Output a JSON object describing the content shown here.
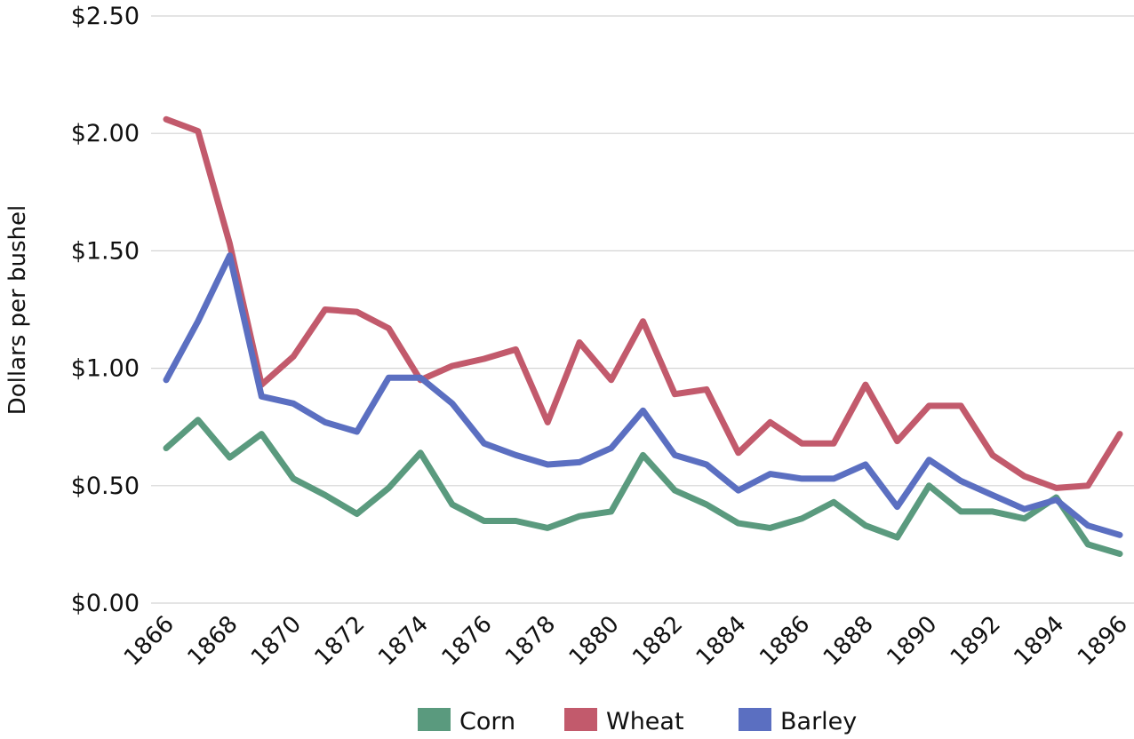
{
  "chart_data": {
    "type": "line",
    "title": "",
    "xlabel": "",
    "ylabel": "Dollars per bushel",
    "ylim": [
      0,
      2.5
    ],
    "yticks": [
      0,
      0.5,
      1,
      1.5,
      2,
      2.5
    ],
    "ytick_labels": [
      "$0.00",
      "$0.50",
      "$1.00",
      "$1.50",
      "$2.00",
      "$2.50"
    ],
    "xlim": [
      1866,
      1896
    ],
    "xticks": [
      1866,
      1868,
      1870,
      1872,
      1874,
      1876,
      1878,
      1880,
      1882,
      1884,
      1886,
      1888,
      1890,
      1892,
      1894,
      1896
    ],
    "grid": "horizontal",
    "legend_position": "bottom",
    "x": [
      1866,
      1867,
      1868,
      1869,
      1870,
      1871,
      1872,
      1873,
      1874,
      1875,
      1876,
      1877,
      1878,
      1879,
      1880,
      1881,
      1882,
      1883,
      1884,
      1885,
      1886,
      1887,
      1888,
      1889,
      1890,
      1891,
      1892,
      1893,
      1894,
      1895,
      1896
    ],
    "series": [
      {
        "name": "Corn",
        "color": "#5a9a7e",
        "values": [
          0.66,
          0.78,
          0.62,
          0.72,
          0.53,
          0.46,
          0.38,
          0.49,
          0.64,
          0.42,
          0.35,
          0.35,
          0.32,
          0.37,
          0.39,
          0.63,
          0.48,
          0.42,
          0.34,
          0.32,
          0.36,
          0.43,
          0.33,
          0.28,
          0.5,
          0.39,
          0.39,
          0.36,
          0.45,
          0.25,
          0.21
        ]
      },
      {
        "name": "Wheat",
        "color": "#c25a6c",
        "values": [
          2.06,
          2.01,
          1.53,
          0.93,
          1.05,
          1.25,
          1.24,
          1.17,
          0.95,
          1.01,
          1.04,
          1.08,
          0.77,
          1.11,
          0.95,
          1.2,
          0.89,
          0.91,
          0.64,
          0.77,
          0.68,
          0.68,
          0.93,
          0.69,
          0.84,
          0.84,
          0.63,
          0.54,
          0.49,
          0.5,
          0.72
        ]
      },
      {
        "name": "Barley",
        "color": "#5b6fc1",
        "values": [
          0.95,
          1.2,
          1.48,
          0.88,
          0.85,
          0.77,
          0.73,
          0.96,
          0.96,
          0.85,
          0.68,
          0.63,
          0.59,
          0.6,
          0.66,
          0.82,
          0.63,
          0.59,
          0.48,
          0.55,
          0.53,
          0.53,
          0.59,
          0.41,
          0.61,
          0.52,
          0.46,
          0.4,
          0.44,
          0.33,
          0.29
        ]
      }
    ]
  }
}
